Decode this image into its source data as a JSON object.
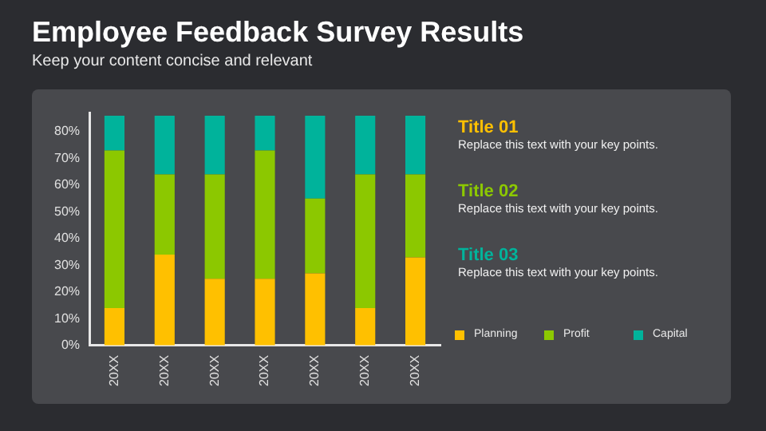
{
  "chart_data": {
    "type": "bar",
    "title": "Employee Feedback Survey Results",
    "subtitle": "Keep your content concise and relevant",
    "categories": [
      "20XX",
      "20XX",
      "20XX",
      "20XX",
      "20XX",
      "20XX",
      "20XX"
    ],
    "series": [
      {
        "name": "Planning",
        "color": "#ffc000",
        "values": [
          14,
          34,
          25,
          25,
          27,
          14,
          33
        ]
      },
      {
        "name": "Profit",
        "color": "#8cc800",
        "values": [
          59,
          30,
          39,
          48,
          28,
          50,
          31
        ]
      },
      {
        "name": "Capital",
        "color": "#00b39b",
        "values": [
          13,
          22,
          22,
          13,
          31,
          22,
          22
        ]
      }
    ],
    "stacked": true,
    "ylim": [
      0,
      87
    ],
    "yticks": [
      {
        "value": 0,
        "label": "0%"
      },
      {
        "value": 10,
        "label": "10%"
      },
      {
        "value": 20,
        "label": "20%"
      },
      {
        "value": 30,
        "label": "30%"
      },
      {
        "value": 40,
        "label": "40%"
      },
      {
        "value": 50,
        "label": "50%"
      },
      {
        "value": 60,
        "label": "60%"
      },
      {
        "value": 70,
        "label": "70%"
      },
      {
        "value": 80,
        "label": "80%"
      }
    ],
    "grid": false,
    "legend": "bottom right",
    "annotations": [
      "Title 01",
      "Replace this text with your key points.",
      "Title 02",
      "Replace this text with your key points.",
      "Title 03",
      "Replace this text with your key points."
    ]
  }
}
